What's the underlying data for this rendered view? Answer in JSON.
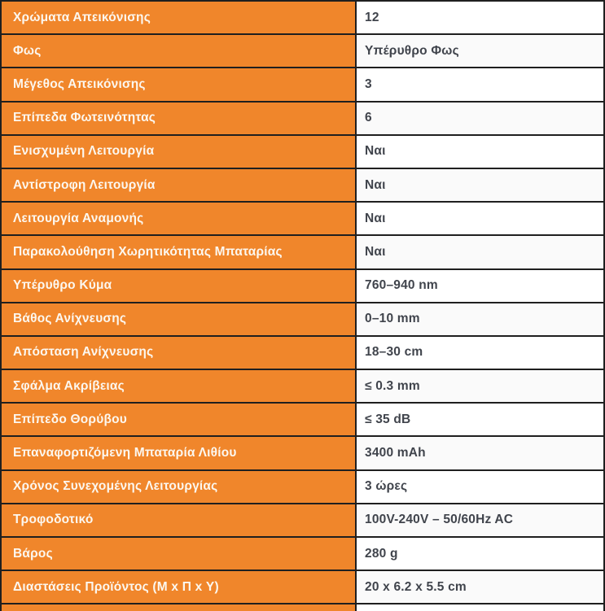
{
  "table": {
    "rows": [
      {
        "label": "Χρώματα Απεικόνισης",
        "value": "12"
      },
      {
        "label": "Φως",
        "value": "Υπέρυθρο Φως"
      },
      {
        "label": "Μέγεθος Απεικόνισης",
        "value": "3"
      },
      {
        "label": "Επίπεδα Φωτεινότητας",
        "value": "6"
      },
      {
        "label": "Ενισχυμένη Λειτουργία",
        "value": "Ναι"
      },
      {
        "label": "Αντίστροφη Λειτουργία",
        "value": "Ναι"
      },
      {
        "label": "Λειτουργία Αναμονής",
        "value": "Ναι"
      },
      {
        "label": "Παρακολούθηση Χωρητικότητας Μπαταρίας",
        "value": "Ναι"
      },
      {
        "label": "Υπέρυθρο Κύμα",
        "value": "760–940 nm"
      },
      {
        "label": "Βάθος Ανίχνευσης",
        "value": "0–10 mm"
      },
      {
        "label": "Απόσταση Ανίχνευσης",
        "value": "18–30 cm"
      },
      {
        "label": "Σφάλμα Ακρίβειας",
        "value": "≤ 0.3 mm"
      },
      {
        "label": "Επίπεδο Θορύβου",
        "value": "≤ 35 dB"
      },
      {
        "label": "Επαναφορτιζόμενη Μπαταρία Λιθίου",
        "value": "3400 mAh"
      },
      {
        "label": "Χρόνος Συνεχομένης Λειτουργίας",
        "value": "3 ώρες"
      },
      {
        "label": "Τροφοδοτικό",
        "value": "100V-240V – 50/60Hz AC"
      },
      {
        "label": "Βάρος",
        "value": "280 g"
      },
      {
        "label": "Διαστάσεις Προϊόντος (Μ x Π x Υ)",
        "value": "20 x 6.2 x 5.5 cm"
      }
    ]
  },
  "colors": {
    "accent_orange": "#f0862b",
    "border": "#1f1f1f",
    "value_row_white": "#ffffff",
    "value_row_alt": "#fafafa",
    "label_text": "#fcf7ef",
    "value_text": "#40444c"
  }
}
